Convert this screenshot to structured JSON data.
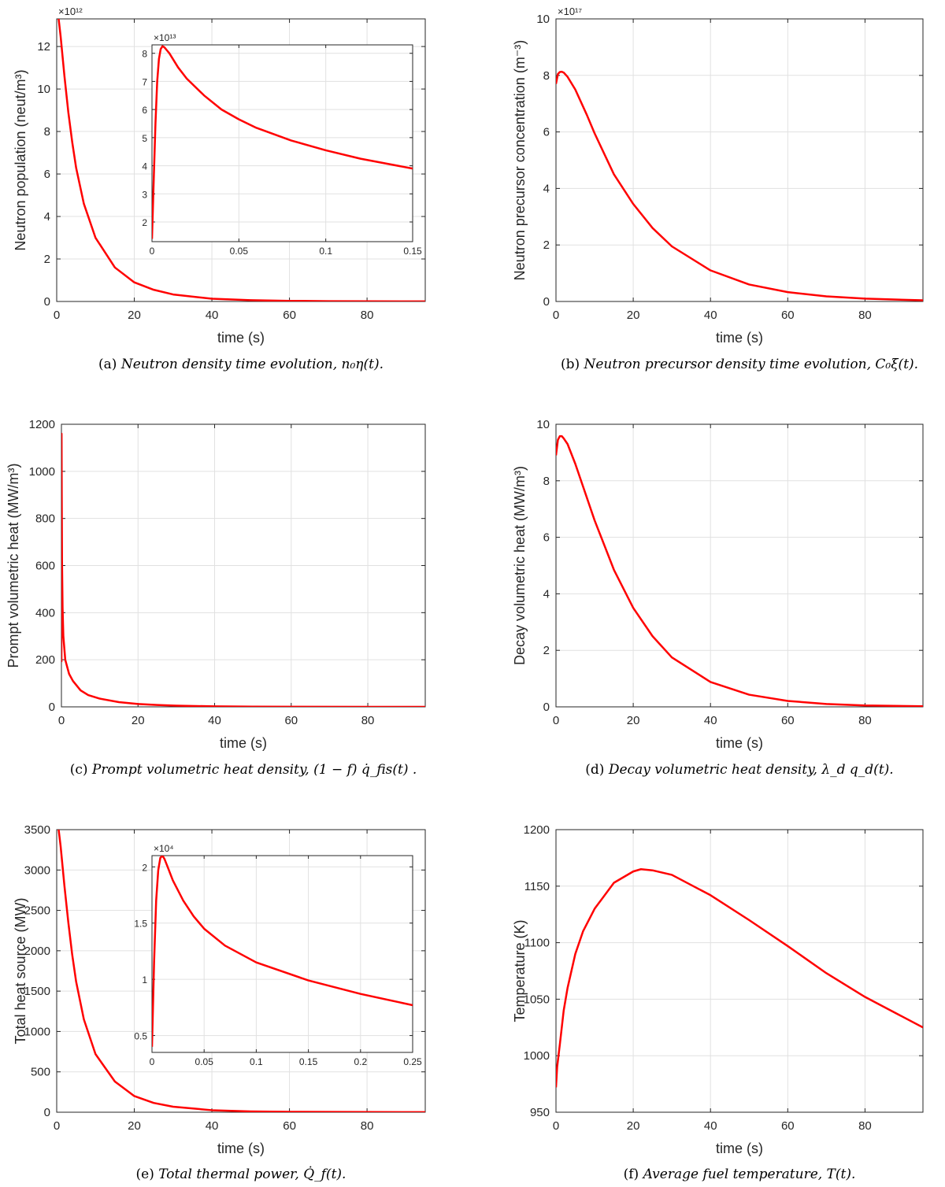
{
  "colors": {
    "curve": "#ff0000",
    "axes": "#262626",
    "grid": "#e1e1e1"
  },
  "chart_data": [
    {
      "id": "a",
      "type": "line",
      "xlabel": "time (s)",
      "ylabel": "Neutron population (neut/m³)",
      "exponent": "×10¹²",
      "xlim": [
        0,
        95
      ],
      "ylim": [
        0,
        13.3
      ],
      "xticks": [
        0,
        20,
        40,
        60,
        80
      ],
      "yticks": [
        0,
        2,
        4,
        6,
        8,
        10,
        12
      ],
      "caption": {
        "label": "(a)",
        "text": "Neutron density time evolution, n₀η(t)."
      },
      "series": [
        {
          "name": "neutron density",
          "x": [
            0.5,
            1,
            2,
            3,
            4,
            5,
            7,
            10,
            15,
            20,
            25,
            30,
            40,
            50,
            60,
            70,
            80,
            95
          ],
          "y": [
            13.3,
            12.5,
            10.6,
            8.9,
            7.5,
            6.3,
            4.6,
            3.0,
            1.6,
            0.9,
            0.55,
            0.33,
            0.13,
            0.06,
            0.03,
            0.015,
            0.008,
            0.003
          ]
        }
      ],
      "inset": {
        "exponent": "×10¹³",
        "xlim": [
          0,
          0.15
        ],
        "ylim": [
          1.3,
          8.3
        ],
        "xticks": [
          0,
          0.05,
          0.1,
          0.15
        ],
        "xticklabels": [
          "0",
          "0.05",
          "0.1",
          "0.15"
        ],
        "yticks": [
          2,
          3,
          4,
          5,
          6,
          7,
          8
        ],
        "series": [
          {
            "name": "neutron density (zoom)",
            "x": [
              0,
              0.001,
              0.002,
              0.003,
              0.004,
              0.005,
              0.006,
              0.007,
              0.008,
              0.01,
              0.015,
              0.02,
              0.03,
              0.04,
              0.05,
              0.06,
              0.08,
              0.1,
              0.12,
              0.15
            ],
            "y": [
              1.4,
              3.5,
              5.5,
              7.0,
              7.8,
              8.15,
              8.25,
              8.22,
              8.15,
              8.0,
              7.5,
              7.1,
              6.5,
              6.0,
              5.65,
              5.35,
              4.9,
              4.55,
              4.25,
              3.9
            ]
          }
        ]
      }
    },
    {
      "id": "b",
      "type": "line",
      "xlabel": "time (s)",
      "ylabel": "Neutron precursor concentration (m⁻³)",
      "exponent": "×10¹⁷",
      "xlim": [
        0,
        95
      ],
      "ylim": [
        0,
        10
      ],
      "xticks": [
        0,
        20,
        40,
        60,
        80
      ],
      "yticks": [
        0,
        2,
        4,
        6,
        8,
        10
      ],
      "caption": {
        "label": "(b)",
        "text": "Neutron precursor density time evolution, C₀ξ(t)."
      },
      "series": [
        {
          "name": "precursor density",
          "x": [
            0,
            0.5,
            1,
            1.5,
            2,
            3,
            5,
            8,
            10,
            15,
            20,
            25,
            30,
            40,
            50,
            60,
            70,
            80,
            95
          ],
          "y": [
            7.7,
            8.05,
            8.12,
            8.13,
            8.1,
            7.95,
            7.5,
            6.6,
            5.95,
            4.5,
            3.45,
            2.6,
            1.95,
            1.1,
            0.6,
            0.33,
            0.18,
            0.1,
            0.04
          ]
        }
      ]
    },
    {
      "id": "c",
      "type": "line",
      "xlabel": "time (s)",
      "ylabel": "Prompt volumetric heat (MW/m³)",
      "xlim": [
        0,
        95
      ],
      "ylim": [
        0,
        1200
      ],
      "xticks": [
        0,
        20,
        40,
        60,
        80
      ],
      "yticks": [
        0,
        200,
        400,
        600,
        800,
        1000,
        1200
      ],
      "caption": {
        "label": "(c)",
        "text": "Prompt volumetric heat density, (1 − f) q̇_fis(t) ."
      },
      "series": [
        {
          "name": "prompt heat",
          "x": [
            0,
            0.03,
            0.08,
            0.15,
            0.3,
            0.5,
            1,
            2,
            3,
            5,
            7,
            10,
            15,
            20,
            25,
            30,
            40,
            50,
            60,
            80,
            95
          ],
          "y": [
            190,
            1160,
            900,
            620,
            420,
            300,
            200,
            140,
            110,
            70,
            50,
            35,
            20,
            12,
            8,
            5,
            2,
            1,
            0.5,
            0.2,
            0.1
          ]
        }
      ]
    },
    {
      "id": "d",
      "type": "line",
      "xlabel": "time (s)",
      "ylabel": "Decay volumetric heat (MW/m³)",
      "xlim": [
        0,
        95
      ],
      "ylim": [
        0,
        10
      ],
      "xticks": [
        0,
        20,
        40,
        60,
        80
      ],
      "yticks": [
        0,
        2,
        4,
        6,
        8,
        10
      ],
      "caption": {
        "label": "(d)",
        "text": "Decay volumetric heat density, λ_d q_d(t)."
      },
      "series": [
        {
          "name": "decay heat",
          "x": [
            0,
            0.5,
            1,
            1.5,
            2,
            3,
            5,
            8,
            10,
            15,
            20,
            25,
            30,
            40,
            50,
            60,
            70,
            80,
            95
          ],
          "y": [
            8.9,
            9.45,
            9.58,
            9.58,
            9.5,
            9.3,
            8.6,
            7.4,
            6.6,
            4.85,
            3.5,
            2.5,
            1.75,
            0.88,
            0.43,
            0.21,
            0.1,
            0.05,
            0.02
          ]
        }
      ]
    },
    {
      "id": "e",
      "type": "line",
      "xlabel": "time (s)",
      "ylabel": "Total heat source (MW)",
      "xlim": [
        0,
        95
      ],
      "ylim": [
        0,
        3500
      ],
      "xticks": [
        0,
        20,
        40,
        60,
        80
      ],
      "yticks": [
        0,
        500,
        1000,
        1500,
        2000,
        2500,
        3000,
        3500
      ],
      "caption": {
        "label": "(e)",
        "text": "Total thermal power, Q̇_f(t)."
      },
      "series": [
        {
          "name": "total heat",
          "x": [
            0.5,
            1,
            2,
            3,
            4,
            5,
            7,
            10,
            15,
            20,
            25,
            30,
            40,
            50,
            60,
            80,
            95
          ],
          "y": [
            3500,
            3300,
            2800,
            2350,
            1950,
            1620,
            1150,
            720,
            380,
            200,
            115,
            68,
            25,
            10,
            5,
            2,
            1
          ]
        }
      ],
      "inset": {
        "exponent": "×10⁴",
        "xlim": [
          0,
          0.25
        ],
        "ylim": [
          0.35,
          2.1
        ],
        "xticks": [
          0,
          0.05,
          0.1,
          0.15,
          0.2,
          0.25
        ],
        "xticklabels": [
          "0",
          "0.05",
          "0.1",
          "0.15",
          "0.2",
          "0.25"
        ],
        "yticks": [
          0.5,
          1,
          1.5,
          2
        ],
        "yticklabels": [
          "0.5",
          "1",
          "1.5",
          "2"
        ],
        "series": [
          {
            "name": "total heat (zoom)",
            "x": [
              0,
              0.002,
              0.004,
              0.006,
              0.008,
              0.01,
              0.012,
              0.015,
              0.02,
              0.03,
              0.04,
              0.05,
              0.07,
              0.1,
              0.15,
              0.2,
              0.25
            ],
            "y": [
              0.4,
              1.15,
              1.7,
              1.97,
              2.08,
              2.1,
              2.07,
              2.0,
              1.88,
              1.7,
              1.56,
              1.45,
              1.3,
              1.15,
              0.99,
              0.87,
              0.77
            ]
          }
        ]
      }
    },
    {
      "id": "f",
      "type": "line",
      "xlabel": "time (s)",
      "ylabel": "Temperature (K)",
      "xlim": [
        0,
        95
      ],
      "ylim": [
        950,
        1200
      ],
      "xticks": [
        0,
        20,
        40,
        60,
        80
      ],
      "yticks": [
        950,
        1000,
        1050,
        1100,
        1150,
        1200
      ],
      "caption": {
        "label": "(f)",
        "text": "Average fuel temperature, T(t)."
      },
      "series": [
        {
          "name": "fuel temperature",
          "x": [
            0,
            0.3,
            1,
            2,
            3,
            5,
            7,
            10,
            15,
            20,
            22,
            25,
            30,
            40,
            50,
            60,
            70,
            80,
            95
          ],
          "y": [
            972,
            990,
            1010,
            1040,
            1060,
            1090,
            1110,
            1130,
            1153,
            1163,
            1165,
            1164,
            1160,
            1142,
            1120,
            1097,
            1073,
            1052,
            1025
          ]
        }
      ]
    }
  ]
}
